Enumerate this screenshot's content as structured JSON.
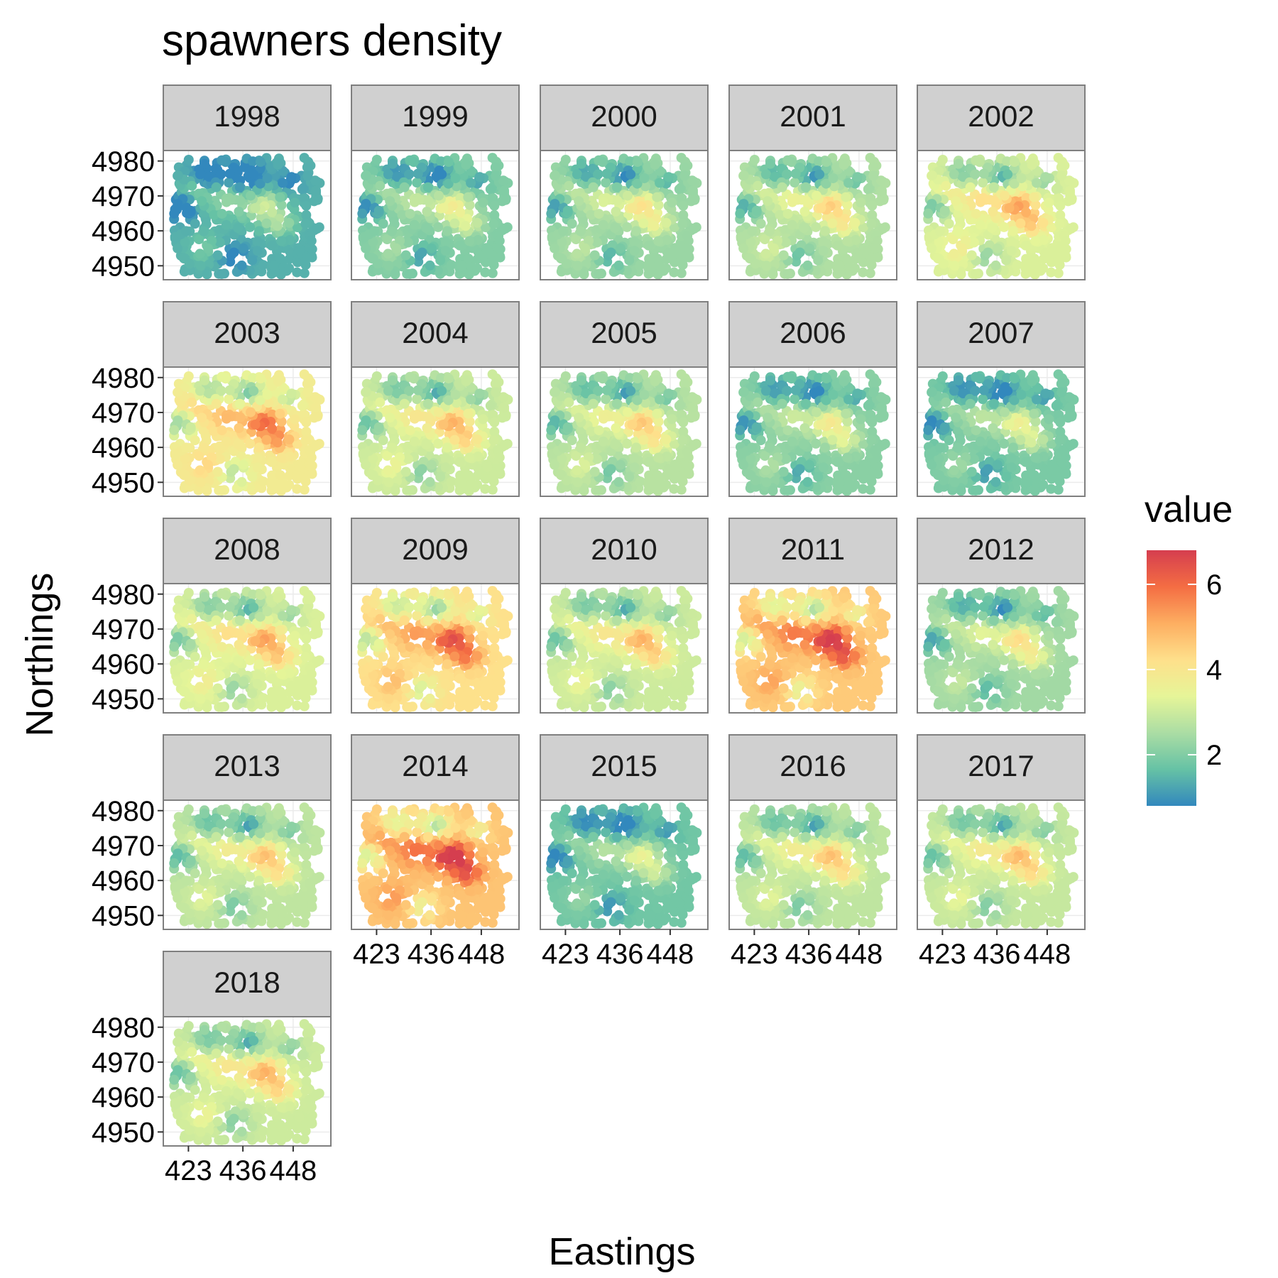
{
  "chart_data": {
    "type": "heatmap",
    "title": "spawners density",
    "xlabel": "Eastings",
    "ylabel": "Northings",
    "facets": [
      "1998",
      "1999",
      "2000",
      "2001",
      "2002",
      "2003",
      "2004",
      "2005",
      "2006",
      "2007",
      "2008",
      "2009",
      "2010",
      "2011",
      "2012",
      "2013",
      "2014",
      "2015",
      "2016",
      "2017",
      "2018"
    ],
    "facet_mean_level": [
      1.4,
      2.0,
      2.3,
      2.6,
      3.2,
      3.8,
      3.0,
      2.7,
      2.1,
      1.9,
      3.2,
      4.2,
      3.0,
      4.6,
      2.4,
      2.8,
      4.7,
      1.8,
      2.8,
      2.9,
      3.0
    ],
    "x_ticks": [
      "423",
      "436",
      "448"
    ],
    "y_ticks": [
      "4950",
      "4960",
      "4970",
      "4980"
    ],
    "xlim": [
      417,
      457
    ],
    "ylim": [
      4946,
      4983
    ],
    "grid": true,
    "legend": {
      "title": "value",
      "ticks": [
        "2",
        "4",
        "6"
      ],
      "range": [
        0.8,
        6.8
      ],
      "placement": "right",
      "colors": [
        "#3288bd",
        "#66c2a5",
        "#abdda4",
        "#e6f598",
        "#fee08b",
        "#fdae61",
        "#f46d43",
        "#d53e4f"
      ]
    }
  }
}
